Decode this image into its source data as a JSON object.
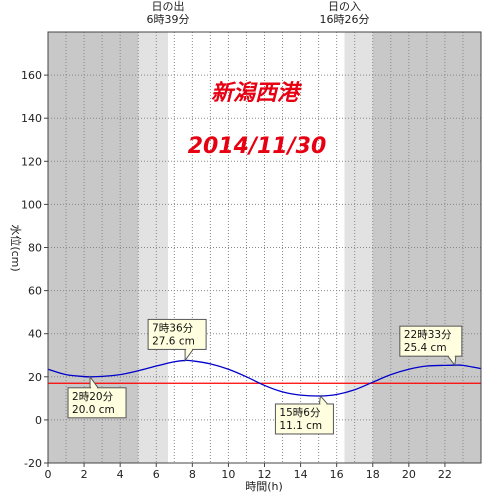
{
  "chart_data": {
    "type": "line",
    "title": "新潟西港",
    "subtitle": "2014/11/30",
    "xlabel": "時間(h)",
    "ylabel": "水位(cm)",
    "xlim": [
      0,
      24
    ],
    "ylim": [
      -20,
      180
    ],
    "x_ticks": [
      0,
      2,
      4,
      6,
      8,
      10,
      12,
      14,
      16,
      18,
      20,
      22
    ],
    "y_ticks": [
      -20,
      0,
      20,
      40,
      60,
      80,
      100,
      120,
      140,
      160
    ],
    "grid": true,
    "sunrise": {
      "label": "日の出",
      "time_label": "6時39分",
      "hour": 6.65
    },
    "sunset": {
      "label": "日の入",
      "time_label": "16時26分",
      "hour": 16.433
    },
    "twilight": {
      "morning_start": 5.0,
      "evening_end": 18.0
    },
    "reference_level": 17.0,
    "series": [
      {
        "x": [
          0,
          1,
          2,
          2.33,
          3,
          4,
          5,
          6,
          7,
          7.6,
          8,
          9,
          10,
          11,
          12,
          13,
          14,
          15.1,
          16,
          17,
          18,
          19,
          20,
          21,
          22,
          22.55,
          23,
          24
        ],
        "values": [
          23.5,
          21.0,
          20.1,
          20.0,
          20.2,
          21.0,
          22.8,
          25.0,
          27.0,
          27.6,
          27.4,
          26.0,
          23.5,
          20.0,
          16.0,
          13.0,
          11.5,
          11.1,
          11.8,
          14.0,
          17.5,
          21.0,
          23.5,
          25.0,
          25.3,
          25.4,
          25.3,
          23.8
        ]
      }
    ],
    "annotations": [
      {
        "line1": "2時20分",
        "line2": "20.0 cm",
        "x": 2.33,
        "y": 20.0
      },
      {
        "line1": "7時36分",
        "line2": "27.6 cm",
        "x": 7.6,
        "y": 27.6
      },
      {
        "line1": "15時6分",
        "line2": "11.1 cm",
        "x": 15.1,
        "y": 11.1
      },
      {
        "line1": "22時33分",
        "line2": "25.4 cm",
        "x": 22.55,
        "y": 25.4
      }
    ],
    "colors": {
      "night": "#c8c8c8",
      "twilight": "#e2e2e2",
      "day": "#ffffff",
      "grid": "#888888",
      "tide_line": "#0000cc",
      "reference_line": "#ff0000",
      "title": "#e60012",
      "callout_bg": "#ffffe0"
    }
  }
}
